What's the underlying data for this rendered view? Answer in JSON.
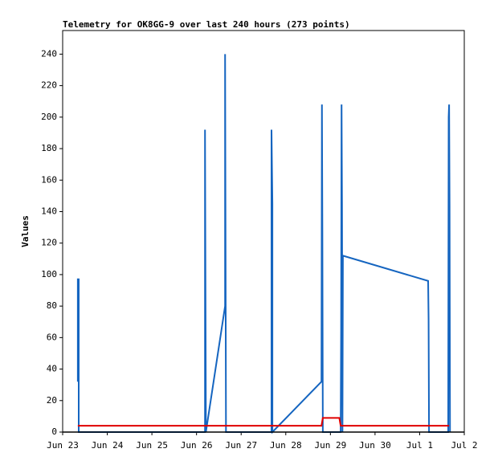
{
  "chart_data": {
    "type": "line",
    "title": "Telemetry for OK8GG-9 over last 240 hours (273 points)",
    "y_label": "Values",
    "xlim": [
      0,
      9
    ],
    "xticks": [
      {
        "value": 0,
        "label": "Jun 23"
      },
      {
        "value": 1,
        "label": "Jun 24"
      },
      {
        "value": 2,
        "label": "Jun 25"
      },
      {
        "value": 3,
        "label": "Jun 26"
      },
      {
        "value": 4,
        "label": "Jun 27"
      },
      {
        "value": 5,
        "label": "Jun 28"
      },
      {
        "value": 6,
        "label": "Jun 29"
      },
      {
        "value": 7,
        "label": "Jun 30"
      },
      {
        "value": 8,
        "label": "Jul 1"
      },
      {
        "value": 9,
        "label": "Jul 2"
      }
    ],
    "ylim": [
      0,
      255
    ],
    "yticks": [
      0,
      20,
      40,
      60,
      80,
      100,
      120,
      140,
      160,
      180,
      200,
      220,
      240
    ],
    "series": [
      {
        "color": "#1565c0",
        "x": [
          0.34,
          0.34,
          0.36,
          0.36,
          3.19,
          3.19,
          3.21,
          3.64,
          3.64,
          3.66,
          4.68,
          4.68,
          4.7,
          4.7,
          5.8,
          5.81,
          5.82,
          5.83,
          6.23,
          6.24,
          6.25,
          6.26,
          6.27,
          6.28,
          8.19,
          8.2,
          8.21,
          8.64,
          8.65,
          8.66,
          8.67,
          8.68
        ],
        "values": [
          32,
          97,
          97,
          0,
          0,
          192,
          0,
          80,
          240,
          0,
          0,
          192,
          145,
          0,
          32,
          208,
          128,
          0,
          0,
          65,
          208,
          145,
          0,
          112,
          96,
          72,
          0,
          0,
          200,
          208,
          145,
          0
        ]
      },
      {
        "color": "#e00000",
        "x": [
          0.34,
          5.8,
          5.83,
          6.2,
          6.23,
          8.66
        ],
        "values": [
          4,
          4,
          9,
          9,
          4,
          4
        ]
      }
    ]
  }
}
